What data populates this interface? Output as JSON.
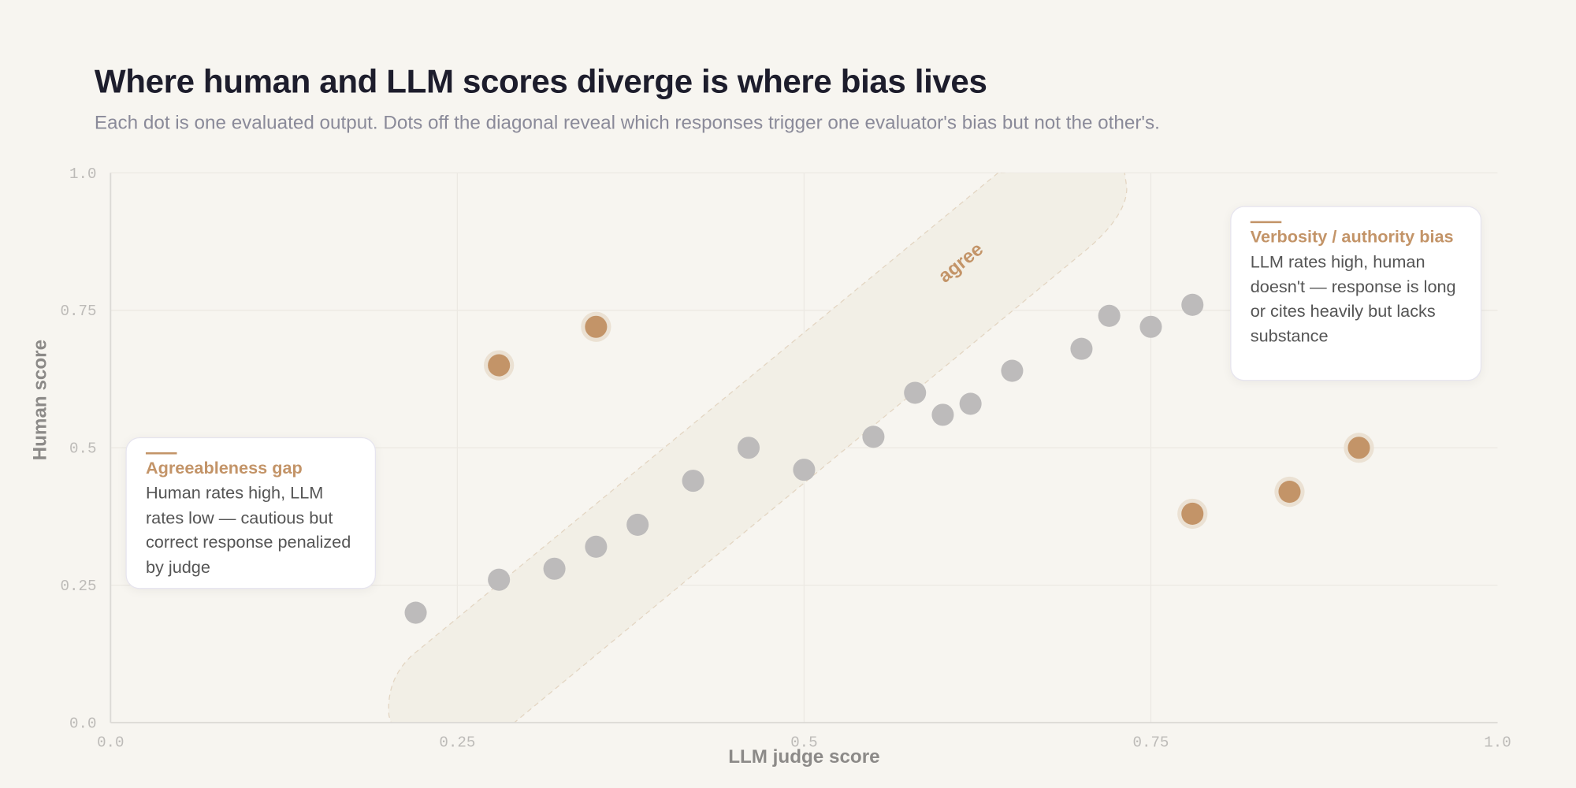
{
  "header": {
    "title": "Where human and LLM scores diverge is where bias lives",
    "subtitle": "Each dot is one evaluated output. Dots off the diagonal reveal which responses trigger one evaluator's bias but not the other's."
  },
  "chart_data": {
    "type": "scatter",
    "xlabel": "LLM judge score",
    "ylabel": "Human score",
    "xlim": [
      0,
      1
    ],
    "ylim": [
      0,
      1
    ],
    "x_ticks": [
      "0.0",
      "0.25",
      "0.5",
      "0.75",
      "1.0"
    ],
    "y_ticks": [
      "0.0",
      "0.25",
      "0.5",
      "0.75",
      "1.0"
    ],
    "grid": true,
    "band_label": "agree",
    "colors": {
      "agree": "#bdbbbb",
      "bias": "#c39468",
      "halo": "#ebe1d3",
      "band": "#f2efe6"
    },
    "series": [
      {
        "group": "agree",
        "points": [
          [
            0.22,
            0.2
          ],
          [
            0.28,
            0.26
          ],
          [
            0.32,
            0.28
          ],
          [
            0.35,
            0.32
          ],
          [
            0.38,
            0.36
          ],
          [
            0.42,
            0.44
          ],
          [
            0.46,
            0.5
          ],
          [
            0.5,
            0.46
          ],
          [
            0.55,
            0.52
          ],
          [
            0.58,
            0.6
          ],
          [
            0.6,
            0.56
          ],
          [
            0.62,
            0.58
          ],
          [
            0.65,
            0.64
          ],
          [
            0.7,
            0.68
          ],
          [
            0.72,
            0.74
          ],
          [
            0.75,
            0.72
          ],
          [
            0.78,
            0.76
          ]
        ]
      },
      {
        "group": "bias",
        "points": [
          [
            0.28,
            0.65
          ],
          [
            0.35,
            0.72
          ],
          [
            0.78,
            0.38
          ],
          [
            0.85,
            0.42
          ],
          [
            0.9,
            0.5
          ]
        ]
      }
    ],
    "annotations": [
      {
        "title": "Agreeableness gap",
        "text": "Human rates high, LLM rates low — cautious but correct response penalized by judge"
      },
      {
        "title": "Verbosity / authority bias",
        "text": "LLM rates high, human doesn't — response is long or cites heavily but lacks substance"
      }
    ]
  }
}
